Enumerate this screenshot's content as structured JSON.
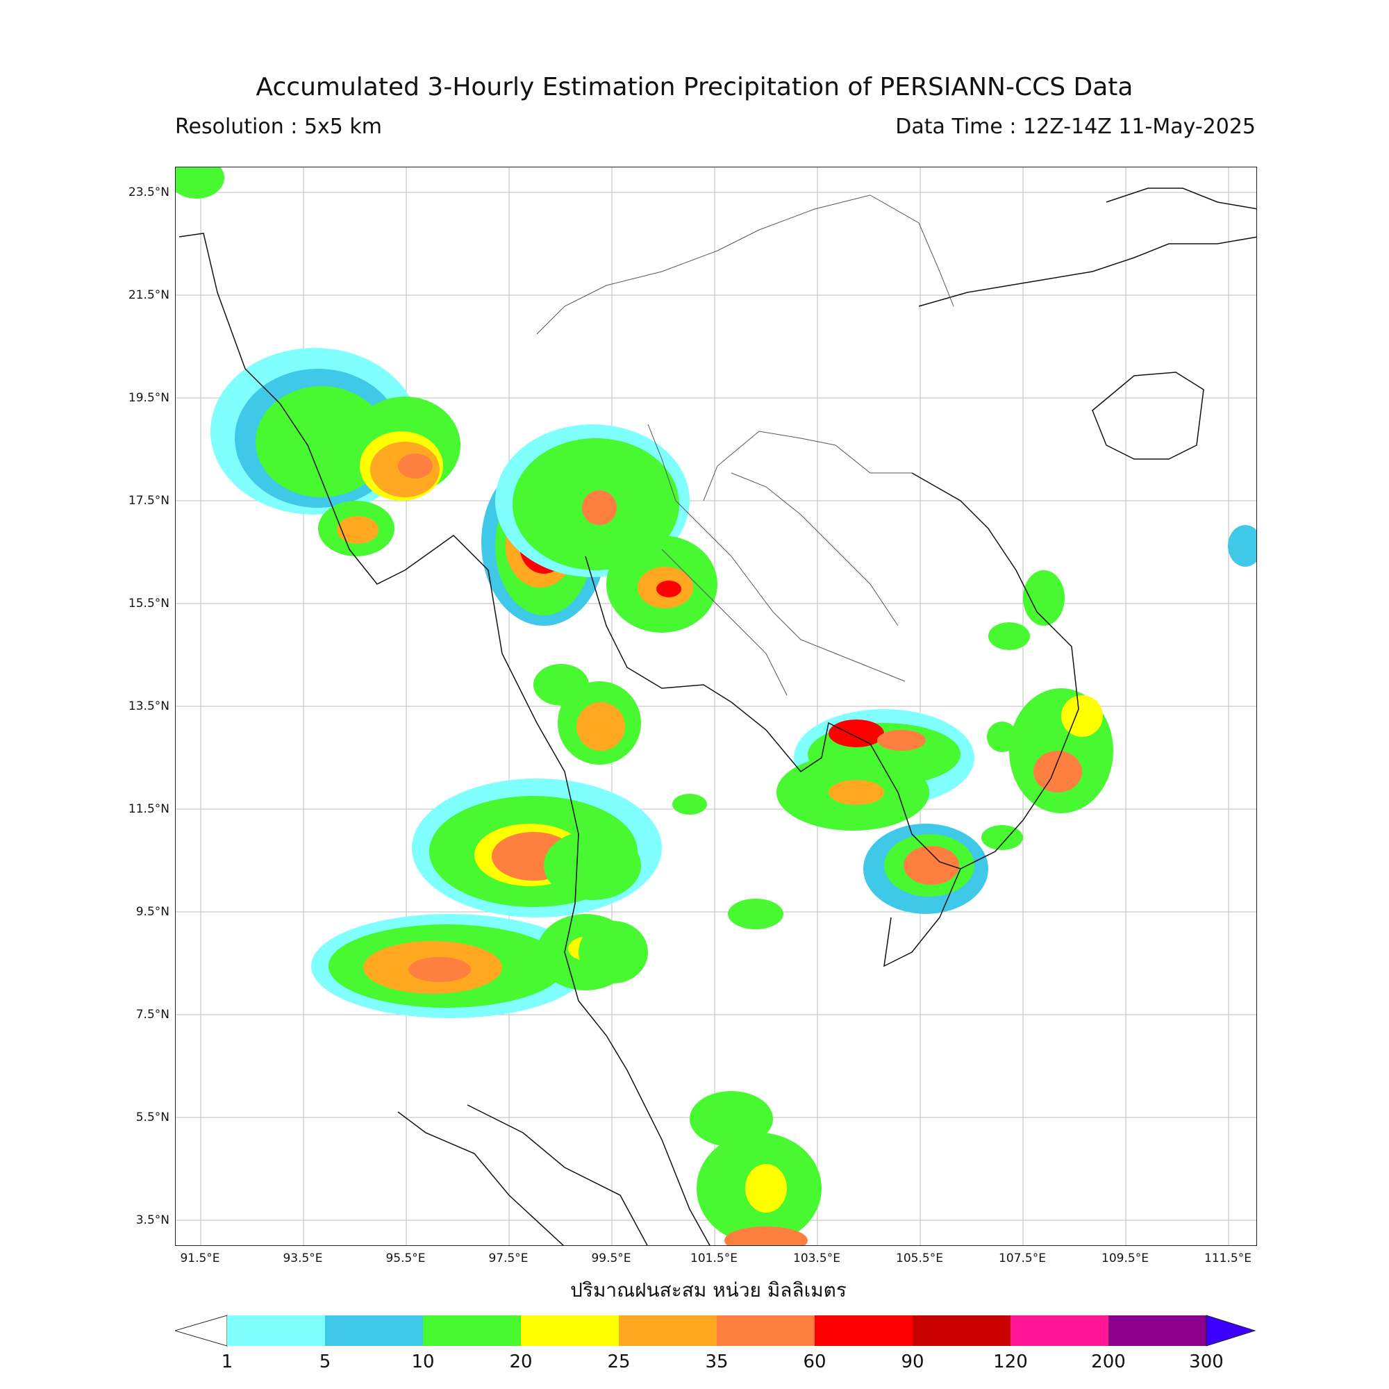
{
  "header": {
    "title": "Accumulated 3-Hourly Estimation Precipitation of PERSIANN-CCS Data",
    "resolution": "Resolution : 5x5 km",
    "data_time": "Data Time : 12Z-14Z 11-May-2025"
  },
  "map": {
    "lat_labels": [
      "23.5°N",
      "21.5°N",
      "19.5°N",
      "17.5°N",
      "15.5°N",
      "13.5°N",
      "11.5°N",
      "9.5°N",
      "7.5°N",
      "5.5°N",
      "3.5°N"
    ],
    "lon_labels": [
      "91.5°E",
      "93.5°E",
      "95.5°E",
      "97.5°E",
      "99.5°E",
      "101.5°E",
      "103.5°E",
      "105.5°E",
      "107.5°E",
      "109.5°E",
      "111.5°E"
    ],
    "xaxis_title": "ปริมาณฝนสะสม หน่วย มิลลิเมตร"
  },
  "colorbar": {
    "labels": [
      "1",
      "5",
      "10",
      "20",
      "25",
      "35",
      "60",
      "90",
      "120",
      "200",
      "300"
    ],
    "colors": [
      "#80ffff",
      "#40c8e8",
      "#48f830",
      "#ffff00",
      "#ffa820",
      "#ff7f40",
      "#ff0000",
      "#c80000",
      "#ff1493",
      "#8b008b"
    ],
    "extend_max_color": "#3b00ff",
    "extend_min_color": "#ffffff"
  }
}
